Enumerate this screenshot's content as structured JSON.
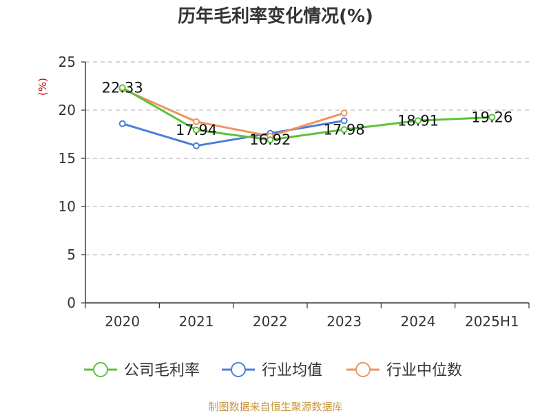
{
  "chart_data": {
    "type": "line",
    "title": "历年毛利率变化情况(%)",
    "unit_label": "(%)",
    "categories": [
      "2020",
      "2021",
      "2022",
      "2023",
      "2024",
      "2025H1"
    ],
    "ylim": [
      0,
      25
    ],
    "yticks": [
      0,
      5,
      10,
      15,
      20,
      25
    ],
    "grid": true,
    "legend_position": "bottom",
    "series": [
      {
        "name": "公司毛利率",
        "color": "#5cc23a",
        "values": [
          22.33,
          17.94,
          16.92,
          17.98,
          18.91,
          19.26
        ],
        "labels": [
          "22.33",
          "17.94",
          "16.92",
          "17.98",
          "18.91",
          "19.26"
        ]
      },
      {
        "name": "行业均值",
        "color": "#4a7fd6",
        "values": [
          18.6,
          16.3,
          17.6,
          18.9,
          null,
          null
        ]
      },
      {
        "name": "行业中位数",
        "color": "#f0935e",
        "values": [
          22.2,
          18.8,
          17.3,
          19.7,
          null,
          null
        ]
      }
    ],
    "source": "制图数据来自恒生聚源数据库"
  }
}
